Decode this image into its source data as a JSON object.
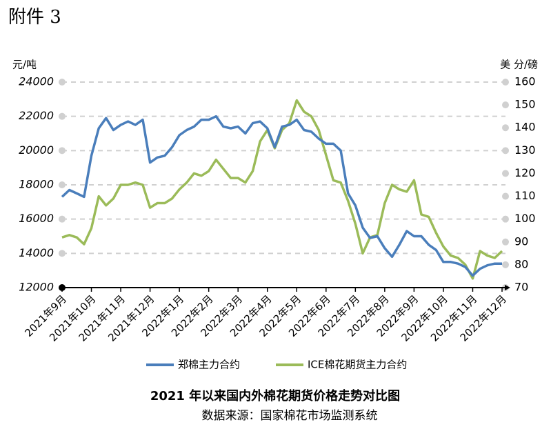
{
  "page_title": "附件 3",
  "chart_data": {
    "type": "line",
    "title": "2021 年以来国内外棉花期货价格走势对比图",
    "subtitle": "数据来源：国家棉花市场监测系统",
    "y_label": "元/吨",
    "y2_label": "美 分/磅",
    "categories": [
      "2021年9月",
      null,
      null,
      null,
      "2021年10月",
      null,
      null,
      null,
      "2021年11月",
      null,
      null,
      null,
      "2021年12月",
      null,
      null,
      null,
      "2022年1月",
      null,
      null,
      null,
      "2022年2月",
      null,
      null,
      null,
      "2022年3月",
      null,
      null,
      null,
      "2022年4月",
      null,
      null,
      null,
      "2022年5月",
      null,
      null,
      null,
      "2022年6月",
      null,
      null,
      null,
      "2022年7月",
      null,
      null,
      null,
      "2022年8月",
      null,
      null,
      null,
      "2022年9月",
      null,
      null,
      null,
      "2022年10月",
      null,
      null,
      null,
      "2022年11月",
      null,
      null,
      null,
      "2022年12月"
    ],
    "series": [
      {
        "name": "郑棉主力合约",
        "color": "#4a7ebb",
        "values": [
          17300,
          17700,
          17500,
          17300,
          19700,
          21300,
          21900,
          21200,
          21500,
          21700,
          21500,
          21800,
          19300,
          19600,
          19700,
          20200,
          20900,
          21200,
          21400,
          21800,
          21800,
          22000,
          21400,
          21300,
          21400,
          21000,
          21600,
          21700,
          21300,
          20200,
          21400,
          21500,
          21800,
          21200,
          21100,
          20700,
          20400,
          20400,
          20000,
          17500,
          16800,
          15500,
          14900,
          15000,
          14300,
          13800,
          14500,
          15300,
          15000,
          15000,
          14500,
          14200,
          13500,
          13500,
          13400,
          13200,
          12700,
          13100,
          13300,
          13400,
          13400
        ]
      },
      {
        "name": "ICE棉花期货主力合约",
        "color": "#9bbb59",
        "axis": "y2",
        "values": [
          92,
          93,
          92,
          89,
          96,
          110,
          106,
          109,
          115,
          115,
          116,
          115,
          105,
          107,
          107,
          109,
          113,
          116,
          120,
          119,
          121,
          126,
          122,
          118,
          118,
          116,
          121,
          134,
          139,
          131,
          139,
          142,
          152,
          147,
          145,
          139,
          128,
          117,
          116,
          108,
          98,
          85,
          92,
          93,
          107,
          115,
          113,
          112,
          117,
          102,
          101,
          94,
          88,
          84,
          83,
          80,
          74,
          86,
          84,
          83,
          86
        ]
      }
    ],
    "ylim": [
      12000,
      24000
    ],
    "yticks": [
      12000,
      14000,
      16000,
      18000,
      20000,
      22000,
      24000
    ],
    "y2lim": [
      70,
      160
    ],
    "y2ticks": [
      70,
      80,
      90,
      100,
      110,
      120,
      130,
      140,
      150,
      160
    ],
    "grid": true,
    "legend": "bottom"
  }
}
